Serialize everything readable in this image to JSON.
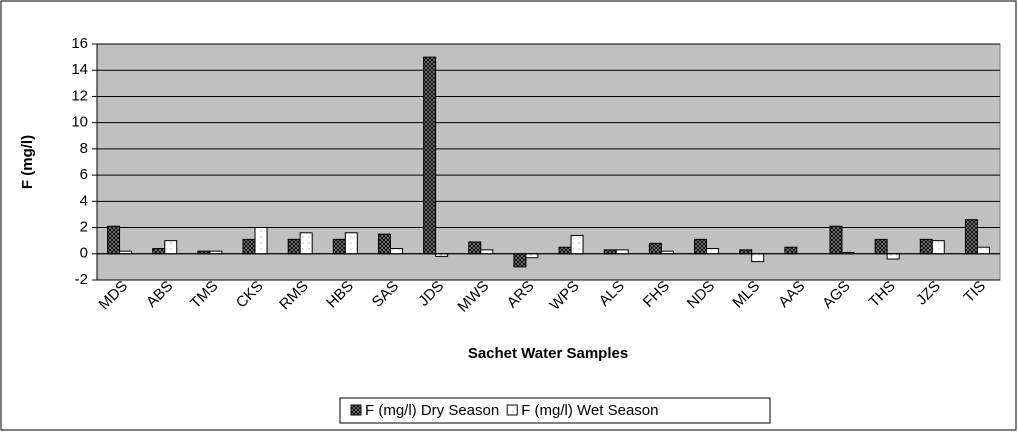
{
  "chart_data": {
    "type": "bar",
    "y_label": "F (mg/l)",
    "x_label": "Sachet Water Samples",
    "categories": [
      "MDS",
      "ABS",
      "TMS",
      "CKS",
      "RMS",
      "HBS",
      "SAS",
      "JDS",
      "MWS",
      "ARS",
      "WPS",
      "ALS",
      "FHS",
      "NDS",
      "MLS",
      "AAS",
      "AGS",
      "THS",
      "JZS",
      "TIS"
    ],
    "series": [
      {
        "name": "F (mg/l) Dry Season",
        "color": "#808080",
        "values": [
          2.1,
          0.4,
          0.2,
          1.1,
          1.1,
          1.1,
          1.5,
          15,
          0.9,
          -1.0,
          0.5,
          0.3,
          0.8,
          1.1,
          0.3,
          0.5,
          2.1,
          1.1,
          1.1,
          2.6
        ]
      },
      {
        "name": "F (mg/l) Wet Season",
        "color": "#ffffff",
        "values": [
          0.2,
          1.0,
          0.2,
          2.0,
          1.6,
          1.6,
          0.4,
          -0.2,
          0.3,
          -0.3,
          1.4,
          0.3,
          0.2,
          0.4,
          -0.6,
          0,
          0.1,
          -0.4,
          1.0,
          0.5
        ]
      }
    ],
    "ylim": [
      -2,
      16
    ],
    "yticks": [
      -2,
      0,
      2,
      4,
      6,
      8,
      10,
      12,
      14,
      16
    ],
    "grid": true,
    "legend": "bottom"
  }
}
